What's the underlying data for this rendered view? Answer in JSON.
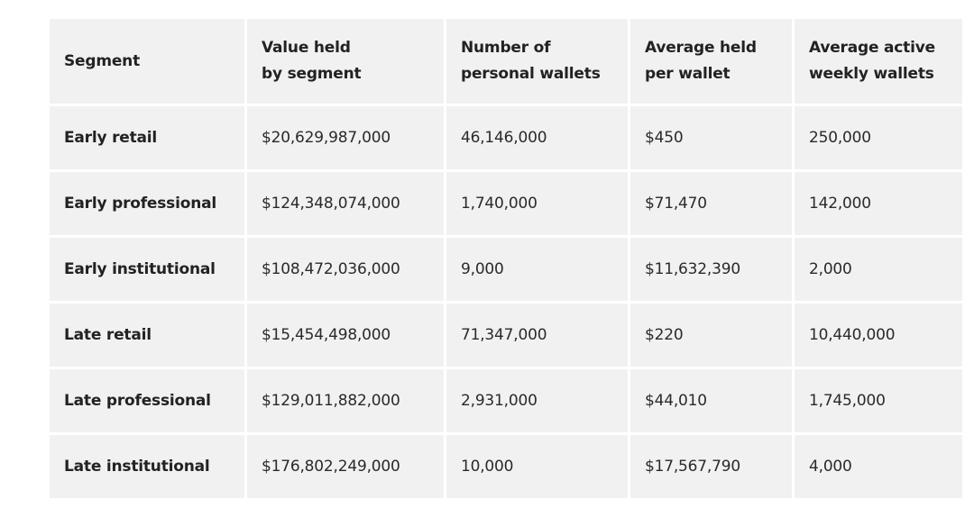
{
  "table": {
    "headers": [
      {
        "line1": "Segment",
        "line2": ""
      },
      {
        "line1": "Value held",
        "line2": "by segment"
      },
      {
        "line1": "Number of",
        "line2": "personal wallets"
      },
      {
        "line1": "Average held",
        "line2": "per wallet"
      },
      {
        "line1": "Average active",
        "line2": "weekly wallets"
      }
    ],
    "rows": [
      {
        "segment": "Early retail",
        "value": "$20,629,987,000",
        "wallets": "46,146,000",
        "avg_held": "$450",
        "weekly": "250,000"
      },
      {
        "segment": "Early professional",
        "value": "$124,348,074,000",
        "wallets": "1,740,000",
        "avg_held": "$71,470",
        "weekly": "142,000"
      },
      {
        "segment": "Early institutional",
        "value": "$108,472,036,000",
        "wallets": "9,000",
        "avg_held": "$11,632,390",
        "weekly": "2,000"
      },
      {
        "segment": "Late retail",
        "value": "$15,454,498,000",
        "wallets": "71,347,000",
        "avg_held": "$220",
        "weekly": "10,440,000"
      },
      {
        "segment": "Late professional",
        "value": "$129,011,882,000",
        "wallets": "2,931,000",
        "avg_held": "$44,010",
        "weekly": "1,745,000"
      },
      {
        "segment": "Late institutional",
        "value": "$176,802,249,000",
        "wallets": "10,000",
        "avg_held": "$17,567,790",
        "weekly": "4,000"
      }
    ]
  }
}
